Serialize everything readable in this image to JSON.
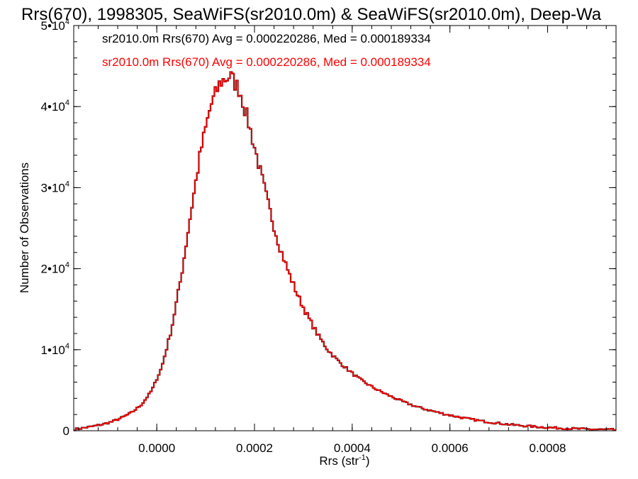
{
  "chart_data": {
    "type": "histogram",
    "title": "Rrs(670), 1998305, SeaWiFS(sr2010.0m) & SeaWiFS(sr2010.0m), Deep-Wa",
    "xlabel_base": "Rrs (str",
    "xlabel_sup": "-1",
    "xlabel_close": ")",
    "ylabel": "Number of Observations",
    "xlim": [
      -0.00017,
      0.00094
    ],
    "ylim": [
      0,
      50000
    ],
    "x_ticks": [
      0.0,
      0.0002,
      0.0004,
      0.0006,
      0.0008
    ],
    "x_tick_labels": [
      "0.0000",
      "0.0002",
      "0.0004",
      "0.0006",
      "0.0008"
    ],
    "x_minor_step": 4e-05,
    "y_ticks": [
      0,
      10000,
      20000,
      30000,
      40000,
      50000
    ],
    "y_tick_labels": [
      {
        "base": "0",
        "exp": ""
      },
      {
        "base": "1•10",
        "exp": "4"
      },
      {
        "base": "2•10",
        "exp": "4"
      },
      {
        "base": "3•10",
        "exp": "4"
      },
      {
        "base": "4•10",
        "exp": "4"
      },
      {
        "base": "5•10",
        "exp": "4"
      }
    ],
    "y_minor_step": 2000,
    "bin_width": 4e-06,
    "annotations": [
      {
        "text": "sr2010.0m Rrs(670) Avg = 0.000220286, Med = 0.000189334",
        "color": "#000000"
      },
      {
        "text": "sr2010.0m Rrs(670) Avg = 0.000220286, Med = 0.000189334",
        "color": "#ff0000"
      }
    ],
    "series": [
      {
        "color_black": "#000000",
        "color_red": "#ff0000",
        "points": [
          [
            -0.00017,
            150
          ],
          [
            -0.00015,
            350
          ],
          [
            -0.00013,
            550
          ],
          [
            -0.00011,
            800
          ],
          [
            -9e-05,
            1150
          ],
          [
            -7e-05,
            1650
          ],
          [
            -5e-05,
            2300
          ],
          [
            -3e-05,
            3300
          ],
          [
            -1e-05,
            5000
          ],
          [
            1e-05,
            7800
          ],
          [
            3e-05,
            12500
          ],
          [
            5e-05,
            19000
          ],
          [
            7e-05,
            27000
          ],
          [
            9e-05,
            34500
          ],
          [
            0.00011,
            40000
          ],
          [
            0.00013,
            43000
          ],
          [
            0.00015,
            43800
          ],
          [
            0.00017,
            42000
          ],
          [
            0.00019,
            37500
          ],
          [
            0.00021,
            32500
          ],
          [
            0.00023,
            27500
          ],
          [
            0.00025,
            23000
          ],
          [
            0.00027,
            19500
          ],
          [
            0.00029,
            16500
          ],
          [
            0.00031,
            14000
          ],
          [
            0.00033,
            11800
          ],
          [
            0.00035,
            10000
          ],
          [
            0.00037,
            8700
          ],
          [
            0.00039,
            7600
          ],
          [
            0.00041,
            6600
          ],
          [
            0.00043,
            5800
          ],
          [
            0.00045,
            5100
          ],
          [
            0.00047,
            4500
          ],
          [
            0.00049,
            3950
          ],
          [
            0.00051,
            3450
          ],
          [
            0.00053,
            3000
          ],
          [
            0.00055,
            2650
          ],
          [
            0.00057,
            2350
          ],
          [
            0.00059,
            2050
          ],
          [
            0.00061,
            1800
          ],
          [
            0.00063,
            1550
          ],
          [
            0.00065,
            1350
          ],
          [
            0.00067,
            1150
          ],
          [
            0.00069,
            1000
          ],
          [
            0.00071,
            850
          ],
          [
            0.00073,
            720
          ],
          [
            0.00075,
            620
          ],
          [
            0.00077,
            520
          ],
          [
            0.00079,
            440
          ],
          [
            0.00081,
            370
          ],
          [
            0.00083,
            310
          ],
          [
            0.00085,
            260
          ],
          [
            0.00087,
            220
          ],
          [
            0.00089,
            180
          ],
          [
            0.00091,
            150
          ],
          [
            0.00094,
            120
          ]
        ]
      }
    ],
    "grid": false
  }
}
